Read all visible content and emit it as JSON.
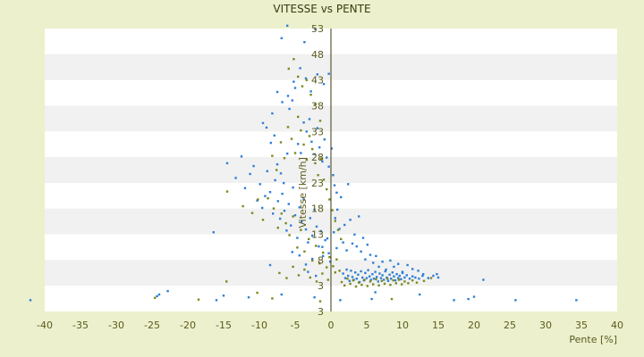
{
  "chart_data": {
    "type": "scatter",
    "title": "VITESSE vs PENTE",
    "xlabel": "Pente [%]",
    "ylabel": "Vitesse [km/h]",
    "xlim": [
      -40,
      40
    ],
    "ylim": [
      3,
      53
    ],
    "x_ticks": [
      "-40",
      "-35",
      "-30",
      "-25",
      "-20",
      "-15",
      "-10",
      "-5",
      "0",
      "5",
      "10",
      "15",
      "20",
      "25",
      "30",
      "35",
      "40"
    ],
    "y_ticks": [
      "53",
      "48",
      "43",
      "38",
      "33",
      "28",
      "23",
      "18",
      "13",
      "8",
      "3",
      "3"
    ],
    "grid": "horizontal bands",
    "legend": "none",
    "series": [
      {
        "color": "#2f7fd6",
        "points": [
          [
            -42.0,
            5.0
          ],
          [
            -24.3,
            5.7
          ],
          [
            -24.0,
            6.0
          ],
          [
            -22.8,
            6.6
          ],
          [
            -16.0,
            5.0
          ],
          [
            -15.0,
            5.8
          ],
          [
            -11.5,
            5.5
          ],
          [
            -6.9,
            6.0
          ],
          [
            -2.3,
            5.5
          ],
          [
            1.3,
            5.0
          ],
          [
            5.7,
            5.2
          ],
          [
            6.2,
            6.4
          ],
          [
            12.4,
            6.0
          ],
          [
            17.2,
            5.0
          ],
          [
            19.2,
            5.2
          ],
          [
            20.0,
            5.6
          ],
          [
            25.8,
            5.0
          ],
          [
            34.3,
            5.0
          ],
          [
            -16.4,
            17.0
          ],
          [
            -8.5,
            11.2
          ],
          [
            -5.4,
            13.5
          ],
          [
            -4.4,
            12.9
          ],
          [
            -3.5,
            11.3
          ],
          [
            -3.2,
            10.0
          ],
          [
            -2.6,
            12.3
          ],
          [
            -2.1,
            9.3
          ],
          [
            -1.2,
            14.4
          ],
          [
            -0.5,
            15.9
          ],
          [
            -0.3,
            13.3
          ],
          [
            -0.1,
            11.8
          ],
          [
            0.4,
            17.0
          ],
          [
            0.6,
            19.5
          ],
          [
            0.8,
            14.2
          ],
          [
            0.9,
            21.0
          ],
          [
            1.2,
            17.6
          ],
          [
            1.4,
            23.2
          ],
          [
            1.7,
            15.2
          ],
          [
            1.9,
            18.3
          ],
          [
            2.2,
            13.8
          ],
          [
            2.4,
            25.5
          ],
          [
            2.7,
            19.2
          ],
          [
            3.0,
            15.0
          ],
          [
            3.3,
            16.6
          ],
          [
            3.6,
            14.5
          ],
          [
            3.9,
            19.8
          ],
          [
            4.2,
            13.6
          ],
          [
            4.5,
            16.0
          ],
          [
            4.8,
            12.2
          ],
          [
            5.1,
            14.8
          ],
          [
            5.5,
            13.0
          ],
          [
            5.9,
            11.6
          ],
          [
            6.3,
            12.8
          ],
          [
            6.7,
            10.9
          ],
          [
            7.2,
            11.8
          ],
          [
            7.7,
            10.4
          ],
          [
            8.3,
            12.0
          ],
          [
            8.8,
            10.9
          ],
          [
            9.4,
            11.4
          ],
          [
            10.0,
            10.0
          ],
          [
            10.7,
            11.2
          ],
          [
            11.4,
            10.5
          ],
          [
            12.2,
            10.2
          ],
          [
            12.9,
            9.6
          ],
          [
            -9.5,
            36.3
          ],
          [
            -9.0,
            35.5
          ],
          [
            -8.4,
            32.8
          ],
          [
            -7.9,
            34.1
          ],
          [
            -7.5,
            29.0
          ],
          [
            -7.0,
            27.4
          ],
          [
            -6.6,
            25.7
          ],
          [
            -6.1,
            30.9
          ],
          [
            -5.8,
            38.8
          ],
          [
            -5.4,
            40.3
          ],
          [
            -5.0,
            42.5
          ],
          [
            -4.6,
            32.6
          ],
          [
            -4.2,
            31.0
          ],
          [
            -3.8,
            36.4
          ],
          [
            -3.4,
            34.8
          ],
          [
            -3.0,
            37.0
          ],
          [
            -2.7,
            33.0
          ],
          [
            -2.3,
            30.8
          ],
          [
            -1.9,
            35.4
          ],
          [
            -1.6,
            32.0
          ],
          [
            -1.2,
            29.5
          ],
          [
            -0.9,
            33.4
          ],
          [
            -0.6,
            30.2
          ],
          [
            -0.3,
            28.6
          ],
          [
            0.1,
            31.8
          ],
          [
            0.3,
            27.1
          ],
          [
            0.5,
            25.3
          ],
          [
            0.8,
            24.0
          ],
          [
            -14.5,
            29.2
          ],
          [
            -13.3,
            26.6
          ],
          [
            -12.5,
            30.4
          ],
          [
            -12.0,
            24.8
          ],
          [
            -11.3,
            27.3
          ],
          [
            -10.8,
            28.7
          ],
          [
            -10.3,
            22.6
          ],
          [
            -9.9,
            25.5
          ],
          [
            -9.6,
            21.3
          ],
          [
            -9.2,
            23.4
          ],
          [
            -8.9,
            27.8
          ],
          [
            -8.5,
            24.1
          ],
          [
            -8.1,
            20.3
          ],
          [
            -7.8,
            26.2
          ],
          [
            -7.4,
            22.5
          ],
          [
            -7.1,
            19.4
          ],
          [
            -6.8,
            23.8
          ],
          [
            -6.5,
            20.8
          ],
          [
            -6.2,
            17.3
          ],
          [
            -5.9,
            22.0
          ],
          [
            -5.6,
            18.2
          ],
          [
            -5.3,
            24.9
          ],
          [
            -5.0,
            20.0
          ],
          [
            -4.7,
            16.0
          ],
          [
            -4.4,
            21.4
          ],
          [
            -4.1,
            18.9
          ],
          [
            -3.8,
            22.8
          ],
          [
            -3.5,
            17.5
          ],
          [
            -3.2,
            15.2
          ],
          [
            -2.9,
            19.5
          ],
          [
            -2.6,
            16.4
          ],
          [
            -2.3,
            21.0
          ],
          [
            -2.0,
            18.0
          ],
          [
            -1.7,
            14.5
          ],
          [
            -1.4,
            17.2
          ],
          [
            -1.1,
            12.8
          ],
          [
            -0.8,
            15.6
          ],
          [
            -6.9,
            51.3
          ],
          [
            -6.1,
            53.5
          ],
          [
            -3.7,
            50.6
          ],
          [
            -2.2,
            52.9
          ],
          [
            -0.3,
            45.0
          ],
          [
            -1.0,
            43.2
          ],
          [
            -1.9,
            44.9
          ],
          [
            -2.8,
            41.9
          ],
          [
            -3.5,
            44.2
          ],
          [
            -4.3,
            46.0
          ],
          [
            -5.2,
            43.6
          ],
          [
            -6.0,
            41.1
          ],
          [
            -6.8,
            40.0
          ],
          [
            -7.5,
            41.8
          ],
          [
            -8.2,
            38.0
          ],
          [
            1.7,
            9.7
          ],
          [
            2.0,
            8.9
          ],
          [
            2.2,
            10.4
          ],
          [
            2.4,
            9.3
          ],
          [
            2.6,
            8.4
          ],
          [
            2.8,
            10.2
          ],
          [
            3.0,
            9.1
          ],
          [
            3.2,
            8.6
          ],
          [
            3.4,
            9.9
          ],
          [
            3.6,
            8.8
          ],
          [
            3.8,
            9.5
          ],
          [
            4.0,
            8.2
          ],
          [
            4.2,
            10.1
          ],
          [
            4.4,
            9.0
          ],
          [
            4.6,
            8.5
          ],
          [
            4.8,
            9.8
          ],
          [
            5.0,
            8.9
          ],
          [
            5.2,
            10.3
          ],
          [
            5.4,
            9.2
          ],
          [
            5.6,
            8.6
          ],
          [
            5.8,
            9.6
          ],
          [
            6.0,
            8.8
          ],
          [
            6.2,
            10.0
          ],
          [
            6.4,
            9.1
          ],
          [
            6.6,
            8.3
          ],
          [
            6.8,
            9.7
          ],
          [
            7.0,
            8.9
          ],
          [
            7.2,
            9.4
          ],
          [
            7.4,
            8.6
          ],
          [
            7.6,
            10.1
          ],
          [
            7.8,
            9.0
          ],
          [
            8.0,
            8.4
          ],
          [
            8.2,
            9.5
          ],
          [
            8.4,
            8.8
          ],
          [
            8.6,
            9.9
          ],
          [
            8.8,
            9.2
          ],
          [
            9.0,
            8.5
          ],
          [
            9.2,
            9.6
          ],
          [
            9.4,
            8.9
          ],
          [
            9.6,
            9.3
          ],
          [
            9.8,
            8.7
          ],
          [
            10.0,
            9.8
          ],
          [
            10.3,
            9.0
          ],
          [
            10.6,
            9.4
          ],
          [
            11.0,
            8.8
          ],
          [
            11.4,
            9.2
          ],
          [
            11.8,
            9.0
          ],
          [
            12.3,
            8.8
          ],
          [
            12.8,
            9.3
          ],
          [
            13.6,
            8.9
          ],
          [
            14.3,
            9.3
          ],
          [
            14.8,
            9.6
          ],
          [
            15.0,
            9.0
          ],
          [
            21.3,
            8.6
          ]
        ]
      },
      {
        "color": "#7a8a1c",
        "points": [
          [
            -24.6,
            5.4
          ],
          [
            -18.5,
            5.1
          ],
          [
            -14.6,
            8.3
          ],
          [
            -10.3,
            6.3
          ],
          [
            -8.2,
            5.3
          ],
          [
            -1.5,
            4.8
          ],
          [
            8.5,
            5.2
          ],
          [
            -14.5,
            24.2
          ],
          [
            -12.3,
            21.6
          ],
          [
            -11.0,
            20.4
          ],
          [
            -10.2,
            22.8
          ],
          [
            -9.5,
            19.2
          ],
          [
            -8.8,
            23.0
          ],
          [
            -8.0,
            21.2
          ],
          [
            -7.4,
            17.8
          ],
          [
            -6.9,
            20.3
          ],
          [
            -6.3,
            18.6
          ],
          [
            -5.8,
            16.5
          ],
          [
            -5.3,
            19.8
          ],
          [
            -4.7,
            14.3
          ],
          [
            -4.2,
            17.4
          ],
          [
            -3.7,
            13.6
          ],
          [
            -3.1,
            15.8
          ],
          [
            -2.6,
            12.0
          ],
          [
            -2.1,
            14.6
          ],
          [
            -1.6,
            11.5
          ],
          [
            -1.1,
            13.4
          ],
          [
            -0.6,
            10.8
          ],
          [
            -0.2,
            12.6
          ],
          [
            0.3,
            11.0
          ],
          [
            0.8,
            12.2
          ],
          [
            1.2,
            10.2
          ],
          [
            -8.2,
            30.5
          ],
          [
            -7.6,
            28.0
          ],
          [
            -7.0,
            32.9
          ],
          [
            -6.5,
            30.1
          ],
          [
            -6.0,
            35.6
          ],
          [
            -5.5,
            33.5
          ],
          [
            -5.0,
            31.0
          ],
          [
            -4.6,
            37.4
          ],
          [
            -4.2,
            35.0
          ],
          [
            -3.8,
            32.5
          ],
          [
            -3.4,
            29.8
          ],
          [
            -3.0,
            34.0
          ],
          [
            -2.6,
            31.7
          ],
          [
            -2.2,
            29.2
          ],
          [
            -1.8,
            27.1
          ],
          [
            -1.4,
            30.0
          ],
          [
            -1.0,
            26.3
          ],
          [
            -0.6,
            24.6
          ],
          [
            -0.2,
            22.8
          ],
          [
            0.2,
            20.9
          ],
          [
            0.6,
            19.0
          ],
          [
            1.0,
            17.4
          ],
          [
            1.4,
            15.8
          ],
          [
            -5.9,
            45.9
          ],
          [
            -5.2,
            47.6
          ],
          [
            -4.6,
            44.5
          ],
          [
            -4.0,
            42.8
          ],
          [
            -3.4,
            43.9
          ],
          [
            -2.8,
            41.3
          ],
          [
            -2.2,
            39.6
          ],
          [
            -1.5,
            36.7
          ],
          [
            -7.2,
            9.8
          ],
          [
            -6.2,
            8.9
          ],
          [
            -5.3,
            10.9
          ],
          [
            -4.5,
            9.4
          ],
          [
            -3.7,
            10.4
          ],
          [
            -2.9,
            9.0
          ],
          [
            -2.0,
            8.3
          ],
          [
            -1.2,
            9.7
          ],
          [
            -0.4,
            8.6
          ],
          [
            0.6,
            9.9
          ],
          [
            1.5,
            8.2
          ],
          [
            1.9,
            7.6
          ],
          [
            2.3,
            8.8
          ],
          [
            2.7,
            7.9
          ],
          [
            3.1,
            8.5
          ],
          [
            3.5,
            7.4
          ],
          [
            3.9,
            8.1
          ],
          [
            4.3,
            7.7
          ],
          [
            4.7,
            8.6
          ],
          [
            5.1,
            7.5
          ],
          [
            5.5,
            8.3
          ],
          [
            5.9,
            7.8
          ],
          [
            6.3,
            8.7
          ],
          [
            6.7,
            7.6
          ],
          [
            7.1,
            8.4
          ],
          [
            7.5,
            7.9
          ],
          [
            7.9,
            8.8
          ],
          [
            8.3,
            7.7
          ],
          [
            8.7,
            8.5
          ],
          [
            9.1,
            8.0
          ],
          [
            9.5,
            8.6
          ],
          [
            9.9,
            7.8
          ],
          [
            10.3,
            8.3
          ],
          [
            10.8,
            8.0
          ],
          [
            11.4,
            8.5
          ],
          [
            12.0,
            8.1
          ],
          [
            13.0,
            8.4
          ],
          [
            14.0,
            8.9
          ]
        ]
      }
    ]
  }
}
